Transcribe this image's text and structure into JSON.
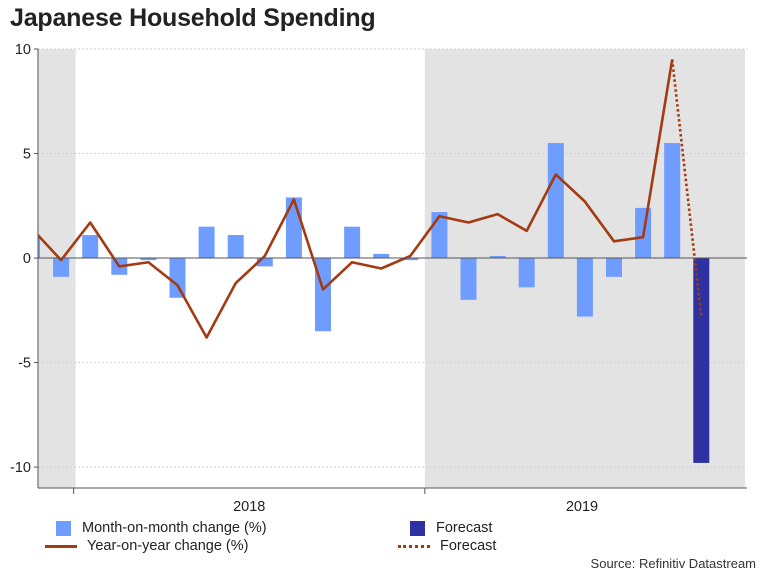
{
  "chart_data": {
    "type": "bar+line",
    "title": "Japanese Household Spending",
    "source": "Source: Refinitiv Datastream",
    "ylim": [
      -11,
      10
    ],
    "yticks": [
      10,
      5,
      0,
      -5,
      -10
    ],
    "ytick_labels": [
      "10",
      "5",
      "0",
      "-5",
      "-10"
    ],
    "year_labels": [
      "2018",
      "2019"
    ],
    "grid": true,
    "months": [
      "2017-11",
      "2017-12",
      "2018-01",
      "2018-02",
      "2018-03",
      "2018-04",
      "2018-05",
      "2018-06",
      "2018-07",
      "2018-08",
      "2018-09",
      "2018-10",
      "2018-11",
      "2018-12",
      "2019-01",
      "2019-02",
      "2019-03",
      "2019-04",
      "2019-05",
      "2019-06",
      "2019-07",
      "2019-08",
      "2019-09",
      "2019-10",
      "2019-11"
    ],
    "shaded_periods": [
      {
        "from": "2017-11",
        "to": "2017-12"
      },
      {
        "from": "2019-01",
        "to": "2019-11"
      }
    ],
    "series": [
      {
        "name": "Month-on-month change (%)",
        "kind": "bar",
        "x": [
          "2017-11",
          "2017-12",
          "2018-01",
          "2018-02",
          "2018-03",
          "2018-04",
          "2018-05",
          "2018-06",
          "2018-07",
          "2018-08",
          "2018-09",
          "2018-10",
          "2018-11",
          "2018-12",
          "2019-01",
          "2019-02",
          "2019-03",
          "2019-04",
          "2019-05",
          "2019-06",
          "2019-07",
          "2019-08",
          "2019-09"
        ],
        "values": [
          1.0,
          -0.9,
          1.1,
          -0.8,
          -0.1,
          -1.9,
          1.5,
          1.1,
          -0.4,
          2.9,
          -3.5,
          1.5,
          0.2,
          -0.1,
          2.2,
          -2.0,
          0.1,
          -1.4,
          5.5,
          -2.8,
          -0.9,
          2.4,
          5.5
        ]
      },
      {
        "name": "Year-on-year change (%)",
        "kind": "line",
        "x": [
          "2017-11",
          "2017-12",
          "2018-01",
          "2018-02",
          "2018-03",
          "2018-04",
          "2018-05",
          "2018-06",
          "2018-07",
          "2018-08",
          "2018-09",
          "2018-10",
          "2018-11",
          "2018-12",
          "2019-01",
          "2019-02",
          "2019-03",
          "2019-04",
          "2019-05",
          "2019-06",
          "2019-07",
          "2019-08",
          "2019-09"
        ],
        "values": [
          1.4,
          -0.1,
          1.7,
          -0.4,
          -0.2,
          -1.3,
          -3.8,
          -1.2,
          0.1,
          2.8,
          -1.5,
          -0.2,
          -0.5,
          0.1,
          2.0,
          1.7,
          2.1,
          1.3,
          4.0,
          2.7,
          0.8,
          1.0,
          9.5
        ]
      },
      {
        "name": "Forecast",
        "kind": "bar",
        "x": [
          "2019-10"
        ],
        "values": [
          -9.8
        ]
      },
      {
        "name": "Forecast",
        "kind": "dotted-line",
        "x": [
          "2019-09",
          "2019-10"
        ],
        "values": [
          9.5,
          -2.8
        ]
      }
    ],
    "colors": {
      "mom_bar": "#6f9cff",
      "yoy_line": "#a33a12",
      "forecast_bar": "#2e32a0",
      "forecast_line": "#a33a12",
      "shade": "#e3e3e3",
      "grid": "#d2d2d2"
    }
  },
  "legend": {
    "mom": "Month-on-month change (%)",
    "yoy": "Year-on-year change (%)",
    "forecast_bar": "Forecast",
    "forecast_line": "Forecast"
  }
}
